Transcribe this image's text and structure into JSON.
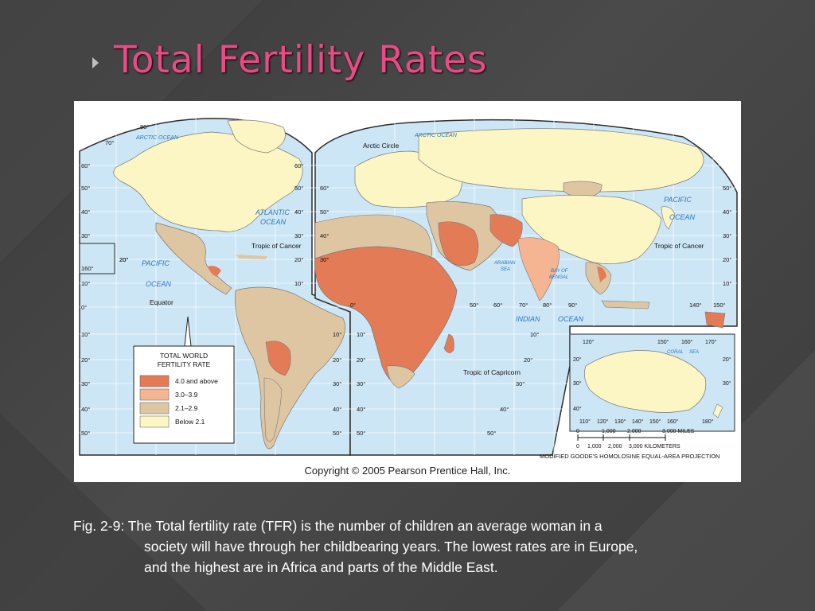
{
  "slide": {
    "title": "Total Fertility Rates"
  },
  "map": {
    "legend": {
      "title_line1": "TOTAL WORLD",
      "title_line2": "FERTILITY RATE",
      "items": [
        {
          "label": "4.0 and above",
          "color": "#e37b57"
        },
        {
          "label": "3.0–3.9",
          "color": "#f5b593"
        },
        {
          "label": "2.1–2.9",
          "color": "#dfc6a3"
        },
        {
          "label": "Below 2.1",
          "color": "#fbf6c4"
        }
      ]
    },
    "ocean_labels": {
      "arctic_ocean_west": "ARCTIC OCEAN",
      "arctic_ocean_east": "ARCTIC OCEAN",
      "atlantic_1": "ATLANTIC",
      "atlantic_2": "OCEAN",
      "pacific_west_1": "PACIFIC",
      "pacific_west_2": "OCEAN",
      "pacific_east_1": "PACIFIC",
      "pacific_east_2": "OCEAN",
      "indian_1": "INDIAN",
      "indian_2": "OCEAN",
      "arabian_1": "ARABIAN",
      "arabian_2": "SEA",
      "bengal_1": "BAY OF",
      "bengal_2": "BENGAL",
      "coral_1": "CORAL",
      "coral_2": "SEA"
    },
    "lines": {
      "arctic_circle": "Arctic Circle",
      "tropic_cancer_west": "Tropic of Cancer",
      "tropic_cancer_east": "Tropic of Cancer",
      "equator": "Equator",
      "tropic_capricorn": "Tropic of Capricorn"
    },
    "lat_labels_left": [
      "60°",
      "50°",
      "40°",
      "30°",
      "20°",
      "10°",
      "0°",
      "10°",
      "20°",
      "30°",
      "40°",
      "50°"
    ],
    "lat_labels_mid_w": [
      "60°",
      "50°",
      "40°",
      "30°",
      "20°",
      "10°"
    ],
    "lat_labels_mid_e": [
      "60°",
      "50°",
      "40°",
      "30°"
    ],
    "lat_labels_right": [
      "50°",
      "40°",
      "30°",
      "20°",
      "10°"
    ],
    "top_labels": {
      "lat80": "80°",
      "lat70": "70°",
      "lon160": "160°",
      "lon20": "20°"
    },
    "equator_lons": [
      "0°",
      "50°",
      "60°",
      "70°",
      "80°",
      "90°",
      "140°",
      "150°"
    ],
    "south_lat_w": [
      "10°",
      "20°",
      "30°",
      "40°",
      "50°"
    ],
    "south_lat_mid": [
      "10°",
      "20°",
      "30°",
      "40°",
      "50°"
    ],
    "south_lat_indian": [
      "10°",
      "20°",
      "30°",
      "40°",
      "50°"
    ],
    "oceania": {
      "top_lons": [
        "120°",
        "150°",
        "160°",
        "170°"
      ],
      "bottom_lons": [
        "110°",
        "120°",
        "130°",
        "140°",
        "150°",
        "160°",
        "180°"
      ],
      "lats_left": [
        "20°",
        "30°",
        "40°"
      ],
      "lats_right": [
        "20°",
        "30°"
      ]
    },
    "scale": {
      "miles": [
        "0",
        "1,000",
        "2,000",
        "3,000 MILES"
      ],
      "km": [
        "0",
        "1,000",
        "2,000",
        "3,000 KILOMETERS"
      ]
    },
    "projection": "MODIFIED GOODE'S HOMOLOSINE EQUAL-AREA PROJECTION",
    "copyright": "Copyright © 2005 Pearson Prentice Hall, Inc."
  },
  "caption": {
    "line1": "Fig. 2-9: The Total fertility rate (TFR) is the number of children an average woman in a",
    "line2": "society will have through her childbearing years. The lowest rates are in Europe,",
    "line3": "and the highest are in Africa and parts of the Middle East."
  }
}
